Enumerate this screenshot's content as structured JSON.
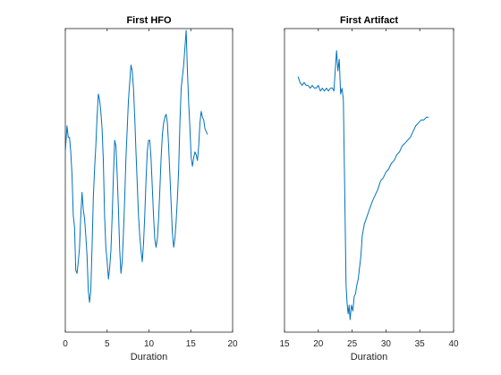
{
  "chart_data": [
    {
      "type": "line",
      "title": "First HFO",
      "xlabel": "Duration",
      "ylabel": "",
      "xlim": [
        0,
        20
      ],
      "xticks": [
        0,
        5,
        10,
        15,
        20
      ],
      "ylim": [
        0,
        1
      ],
      "yticks_shown": false,
      "grid": false,
      "color": "#0072bd",
      "x": [
        0.0,
        0.2,
        0.35,
        0.5,
        0.65,
        0.8,
        0.95,
        1.1,
        1.25,
        1.4,
        1.55,
        1.7,
        1.85,
        2.0,
        2.15,
        2.3,
        2.45,
        2.6,
        2.75,
        2.9,
        3.05,
        3.2,
        3.35,
        3.5,
        3.65,
        3.8,
        3.95,
        4.1,
        4.25,
        4.4,
        4.55,
        4.7,
        4.85,
        5.0,
        5.15,
        5.3,
        5.45,
        5.6,
        5.75,
        5.9,
        6.05,
        6.2,
        6.35,
        6.5,
        6.65,
        6.8,
        6.95,
        7.1,
        7.25,
        7.4,
        7.55,
        7.7,
        7.85,
        8.0,
        8.15,
        8.3,
        8.45,
        8.6,
        8.75,
        8.9,
        9.05,
        9.2,
        9.35,
        9.5,
        9.65,
        9.8,
        9.95,
        10.1,
        10.25,
        10.4,
        10.55,
        10.7,
        10.85,
        11.0,
        11.15,
        11.3,
        11.45,
        11.6,
        11.75,
        11.9,
        12.05,
        12.2,
        12.35,
        12.5,
        12.65,
        12.8,
        12.95,
        13.1,
        13.25,
        13.4,
        13.55,
        13.7,
        13.85,
        14.0,
        14.15,
        14.3,
        14.45,
        14.6,
        14.75,
        14.9,
        15.05,
        15.2,
        15.35,
        15.5,
        15.65,
        15.8,
        15.95,
        16.1,
        16.25,
        16.4,
        16.55,
        16.7,
        16.85,
        17.0
      ],
      "y": [
        0.58,
        0.67,
        0.63,
        0.63,
        0.58,
        0.5,
        0.36,
        0.32,
        0.17,
        0.16,
        0.2,
        0.25,
        0.36,
        0.44,
        0.38,
        0.35,
        0.29,
        0.22,
        0.1,
        0.06,
        0.1,
        0.25,
        0.42,
        0.52,
        0.6,
        0.7,
        0.78,
        0.76,
        0.72,
        0.66,
        0.55,
        0.36,
        0.25,
        0.2,
        0.14,
        0.18,
        0.24,
        0.36,
        0.5,
        0.62,
        0.6,
        0.5,
        0.38,
        0.24,
        0.16,
        0.2,
        0.3,
        0.42,
        0.56,
        0.66,
        0.76,
        0.82,
        0.88,
        0.86,
        0.8,
        0.7,
        0.58,
        0.47,
        0.36,
        0.29,
        0.24,
        0.2,
        0.26,
        0.36,
        0.48,
        0.58,
        0.62,
        0.62,
        0.56,
        0.46,
        0.36,
        0.28,
        0.25,
        0.28,
        0.35,
        0.45,
        0.56,
        0.64,
        0.68,
        0.7,
        0.71,
        0.68,
        0.6,
        0.5,
        0.4,
        0.3,
        0.25,
        0.28,
        0.34,
        0.42,
        0.52,
        0.68,
        0.8,
        0.84,
        0.88,
        0.94,
        1.0,
        0.86,
        0.75,
        0.66,
        0.56,
        0.53,
        0.56,
        0.58,
        0.57,
        0.55,
        0.6,
        0.68,
        0.72,
        0.7,
        0.69,
        0.66,
        0.65,
        0.64
      ]
    },
    {
      "type": "line",
      "title": "First Artifact",
      "xlabel": "Duration",
      "ylabel": "",
      "xlim": [
        15,
        40
      ],
      "xticks": [
        15,
        20,
        25,
        30,
        35,
        40
      ],
      "ylim": [
        0,
        1
      ],
      "yticks_shown": false,
      "grid": false,
      "color": "#0072bd",
      "x": [
        17.0,
        17.3,
        17.6,
        17.9,
        18.2,
        18.5,
        18.8,
        19.1,
        19.4,
        19.7,
        20.0,
        20.3,
        20.6,
        20.9,
        21.2,
        21.5,
        21.8,
        22.1,
        22.3,
        22.5,
        22.7,
        22.9,
        23.1,
        23.3,
        23.5,
        23.7,
        23.9,
        24.1,
        24.25,
        24.4,
        24.55,
        24.7,
        24.9,
        25.1,
        25.3,
        25.5,
        25.7,
        25.9,
        26.1,
        26.3,
        26.5,
        26.8,
        27.1,
        27.4,
        27.7,
        28.0,
        28.4,
        28.8,
        29.2,
        29.6,
        30.0,
        30.4,
        30.8,
        31.2,
        31.6,
        32.0,
        32.4,
        32.8,
        33.2,
        33.6,
        34.0,
        34.4,
        34.8,
        35.2,
        35.6,
        36.0,
        36.3
      ],
      "y": [
        0.84,
        0.82,
        0.81,
        0.82,
        0.81,
        0.81,
        0.8,
        0.81,
        0.8,
        0.8,
        0.81,
        0.79,
        0.8,
        0.79,
        0.8,
        0.79,
        0.8,
        0.8,
        0.79,
        0.86,
        0.93,
        0.86,
        0.9,
        0.78,
        0.8,
        0.76,
        0.45,
        0.12,
        0.06,
        0.02,
        0.05,
        0.0,
        0.05,
        0.03,
        0.08,
        0.09,
        0.12,
        0.14,
        0.18,
        0.22,
        0.29,
        0.33,
        0.35,
        0.37,
        0.39,
        0.41,
        0.43,
        0.45,
        0.48,
        0.49,
        0.51,
        0.52,
        0.54,
        0.55,
        0.57,
        0.58,
        0.6,
        0.61,
        0.62,
        0.63,
        0.65,
        0.67,
        0.68,
        0.69,
        0.69,
        0.7,
        0.7
      ]
    }
  ]
}
